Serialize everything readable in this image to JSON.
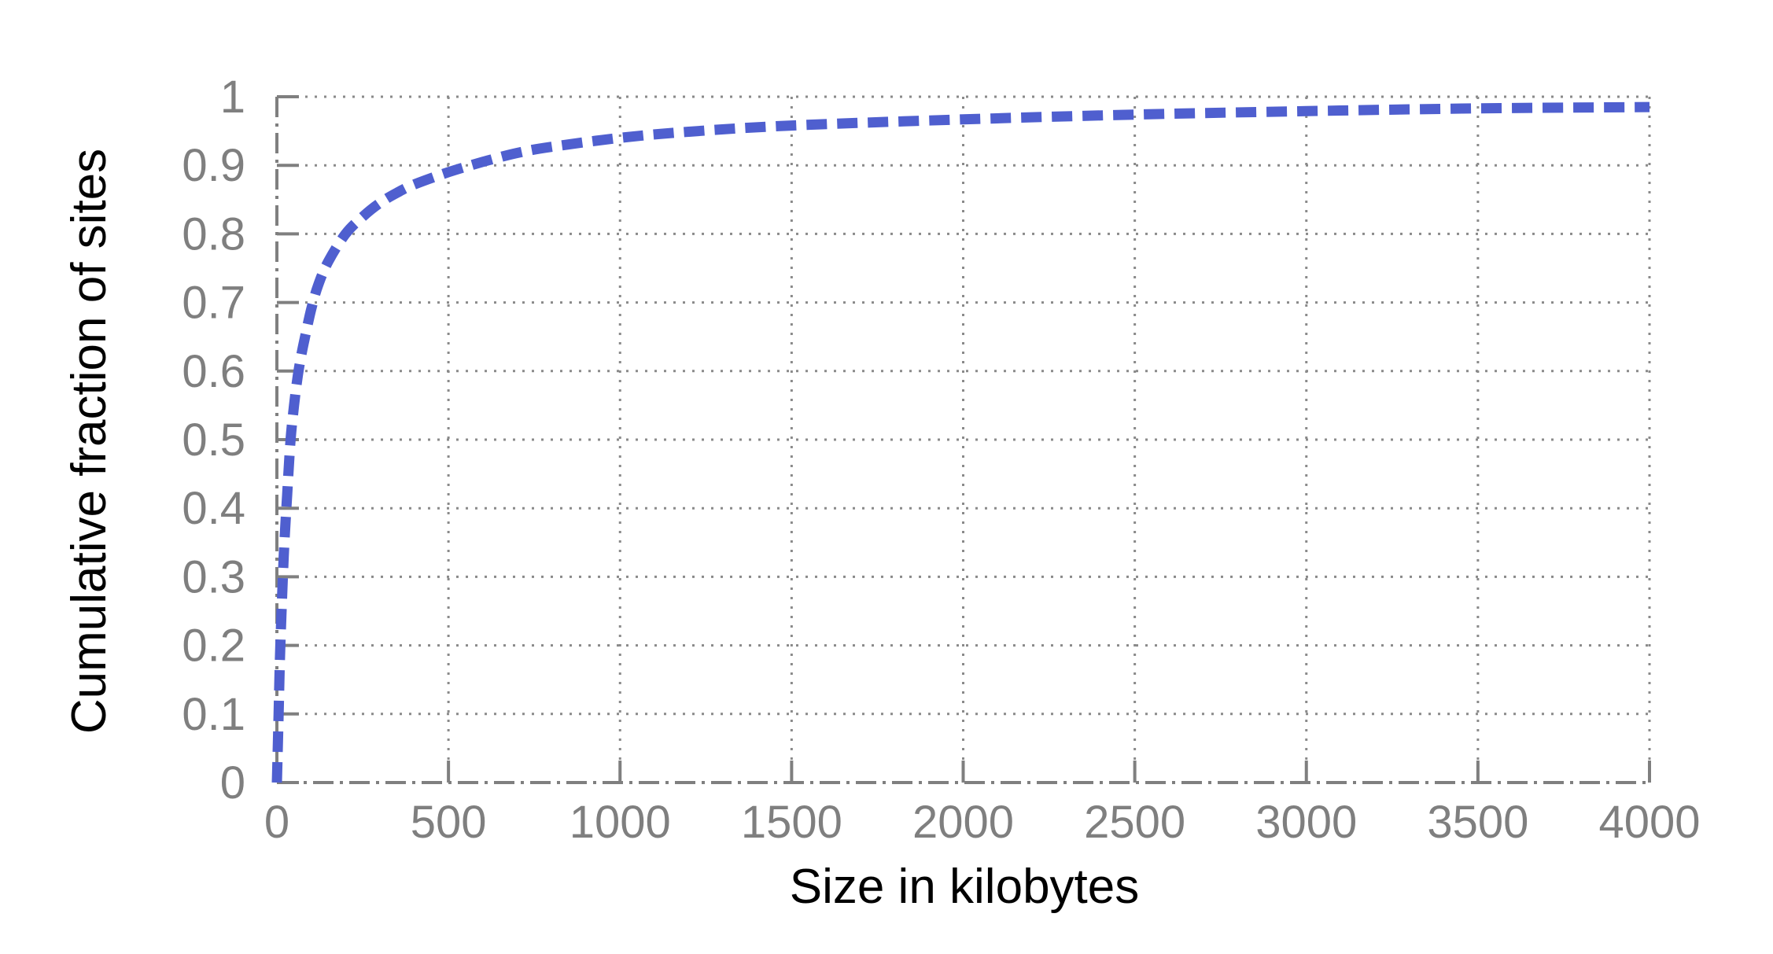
{
  "chart_data": {
    "type": "line",
    "title": "",
    "xlabel": "Size in kilobytes",
    "ylabel": "Cumulative fraction of sites",
    "xlim": [
      0,
      4000
    ],
    "ylim": [
      0,
      1
    ],
    "x_ticks": [
      "0",
      "500",
      "1000",
      "1500",
      "2000",
      "2500",
      "3000",
      "3500",
      "4000"
    ],
    "y_ticks": [
      "0",
      "0.1",
      "0.2",
      "0.3",
      "0.4",
      "0.5",
      "0.6",
      "0.7",
      "0.8",
      "0.9",
      "1"
    ],
    "grid": true,
    "legend": "none",
    "series": [
      {
        "color": "#4f5fcf",
        "style": "dashed",
        "x": [
          0,
          5,
          10,
          20,
          30,
          40,
          50,
          60,
          70,
          80,
          100,
          120,
          150,
          200,
          250,
          300,
          350,
          400,
          500,
          600,
          700,
          800,
          1000,
          1200,
          1500,
          2000,
          2500,
          3000,
          3500,
          4000
        ],
        "y": [
          0,
          0.1,
          0.2,
          0.33,
          0.42,
          0.5,
          0.55,
          0.59,
          0.62,
          0.645,
          0.69,
          0.725,
          0.76,
          0.8,
          0.825,
          0.845,
          0.86,
          0.872,
          0.89,
          0.905,
          0.918,
          0.927,
          0.94,
          0.949,
          0.958,
          0.967,
          0.974,
          0.979,
          0.983,
          0.985
        ]
      }
    ]
  }
}
